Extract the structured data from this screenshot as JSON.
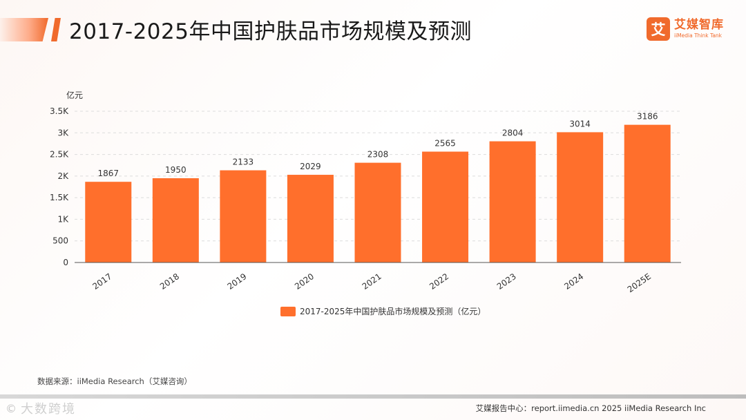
{
  "header": {
    "title": "2017-2025年中国护肤品市场规模及预测",
    "logo_mark": "艾",
    "logo_cn": "艾媒智库",
    "logo_en": "iiMedia Think Tank"
  },
  "chart_data": {
    "type": "bar",
    "title": "2017-2025年中国护肤品市场规模及预测",
    "ylabel": "亿元",
    "xlabel": "",
    "categories": [
      "2017",
      "2018",
      "2019",
      "2020",
      "2021",
      "2022",
      "2023",
      "2024",
      "2025E"
    ],
    "series": [
      {
        "name": "2017-2025年中国护肤品市场规模及预测（亿元）",
        "values": [
          1867,
          1950,
          2133,
          2029,
          2308,
          2565,
          2804,
          3014,
          3186
        ]
      }
    ],
    "value_labels": [
      "1867",
      "1950",
      "2133",
      "2029",
      "2308",
      "2565",
      "2804",
      "3014",
      "3186"
    ],
    "ylim": [
      0,
      3500
    ],
    "yticks": [
      0,
      500,
      1000,
      1500,
      2000,
      2500,
      3000,
      3500
    ],
    "ytick_labels": [
      "0",
      "500",
      "1K",
      "1.5K",
      "2K",
      "2.5K",
      "3K",
      "3.5K"
    ],
    "grid": true,
    "legend_position": "bottom-center",
    "bar_color": "#ff6f2c"
  },
  "source": "数据来源：iiMedia Research（艾媒咨询）",
  "footer": {
    "watermark_icon": "©",
    "watermark_text": "大数跨境",
    "right": "艾媒报告中心：report.iimedia.cn   2025 iiMedia Research Inc"
  },
  "colors": {
    "accent": "#f06a2c",
    "bar": "#ff6f2c"
  }
}
